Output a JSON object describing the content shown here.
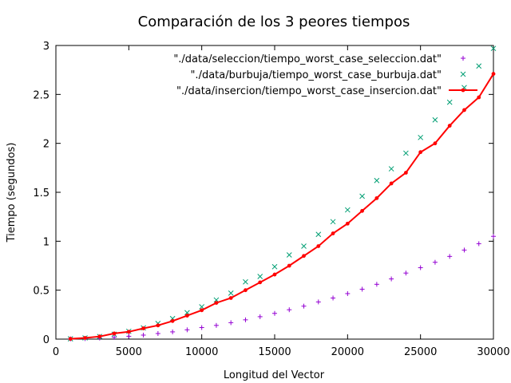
{
  "chart_data": {
    "type": "scatter",
    "title": "Comparación de los 3 peores tiempos",
    "xlabel": "Longitud del Vector",
    "ylabel": "Tiempo (segundos)",
    "xlim": [
      0,
      30000
    ],
    "ylim": [
      0,
      3
    ],
    "xticks": [
      0,
      5000,
      10000,
      15000,
      20000,
      25000,
      30000
    ],
    "yticks": [
      0,
      0.5,
      1,
      1.5,
      2,
      2.5,
      3
    ],
    "xtick_labels": [
      "0",
      "5000",
      "10000",
      "15000",
      "20000",
      "25000",
      "30000"
    ],
    "ytick_labels": [
      "0",
      "0.5",
      "1",
      "1.5",
      "2",
      "2.5",
      "3"
    ],
    "grid": false,
    "legend_position": "top-right",
    "x": [
      1000,
      2000,
      3000,
      4000,
      5000,
      6000,
      7000,
      8000,
      9000,
      10000,
      11000,
      12000,
      13000,
      14000,
      15000,
      16000,
      17000,
      18000,
      19000,
      20000,
      21000,
      22000,
      23000,
      24000,
      25000,
      26000,
      27000,
      28000,
      29000,
      30000
    ],
    "series": [
      {
        "name": "\"./data/seleccion/tiempo_worst_case_seleccion.dat\"",
        "style": "plus",
        "color": "#9400d3",
        "values": [
          0.002,
          0.005,
          0.011,
          0.018,
          0.029,
          0.041,
          0.057,
          0.074,
          0.095,
          0.118,
          0.14,
          0.168,
          0.197,
          0.229,
          0.263,
          0.3,
          0.337,
          0.38,
          0.42,
          0.465,
          0.51,
          0.56,
          0.615,
          0.675,
          0.73,
          0.785,
          0.845,
          0.91,
          0.975,
          1.05
        ]
      },
      {
        "name": "\"./data/burbuja/tiempo_worst_case_burbuja.dat\"",
        "style": "cross",
        "color": "#009e73",
        "values": [
          0.003,
          0.012,
          0.027,
          0.05,
          0.08,
          0.115,
          0.16,
          0.21,
          0.27,
          0.33,
          0.4,
          0.47,
          0.585,
          0.64,
          0.74,
          0.86,
          0.95,
          1.07,
          1.2,
          1.32,
          1.46,
          1.62,
          1.74,
          1.9,
          2.06,
          2.24,
          2.42,
          2.57,
          2.79,
          2.97
        ]
      },
      {
        "name": "\"./data/insercion/tiempo_worst_case_insercion.dat\"",
        "style": "line-points",
        "color": "#ff0000",
        "values": [
          0.003,
          0.012,
          0.027,
          0.058,
          0.075,
          0.11,
          0.14,
          0.185,
          0.24,
          0.295,
          0.37,
          0.42,
          0.5,
          0.58,
          0.66,
          0.75,
          0.85,
          0.95,
          1.08,
          1.18,
          1.31,
          1.44,
          1.59,
          1.7,
          1.91,
          2.0,
          2.18,
          2.34,
          2.47,
          2.71
        ]
      }
    ]
  }
}
